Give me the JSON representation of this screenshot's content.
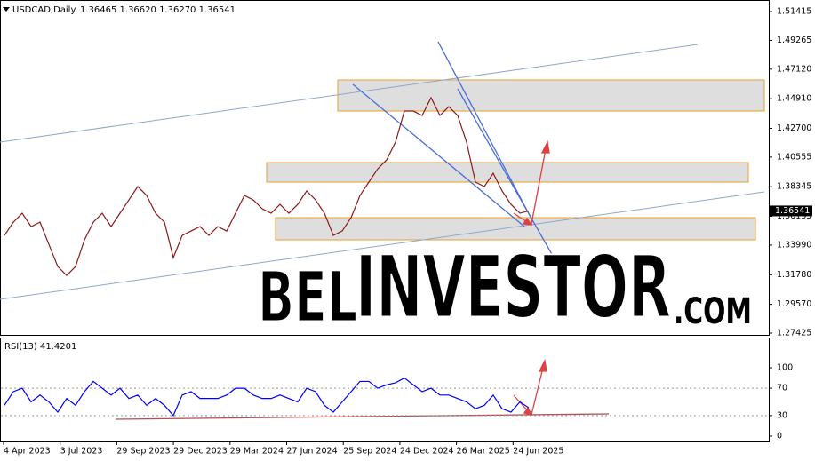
{
  "header": {
    "symbol": "USDCAD,Daily",
    "ohlc": "1.36465 1.36620 1.36270 1.36541"
  },
  "chart_data": [
    {
      "type": "line",
      "color": "#8b1a1a",
      "values": [
        1.3471,
        1.357,
        1.3637,
        1.3537,
        1.357,
        1.3404,
        1.3239,
        1.3172,
        1.3239,
        1.3438,
        1.357,
        1.3637,
        1.3537,
        1.3637,
        1.3736,
        1.3836,
        1.3769,
        1.3637,
        1.357,
        1.3305,
        1.3471,
        1.3504,
        1.3537,
        1.3471,
        1.3537,
        1.3504,
        1.3637,
        1.3769,
        1.3736,
        1.367,
        1.3637,
        1.3703,
        1.3637,
        1.3703,
        1.3803,
        1.3736,
        1.3637,
        1.3471,
        1.3504,
        1.3604,
        1.3769,
        1.3869,
        1.3968,
        1.4035,
        1.4167,
        1.4399,
        1.4399,
        1.4366,
        1.4499,
        1.4366,
        1.4432,
        1.4366,
        1.4167,
        1.3869,
        1.3836,
        1.3935,
        1.3803,
        1.3703,
        1.3637,
        1.36541
      ],
      "ylim": [
        1.27226,
        1.52276
      ],
      "yticks": [
        1.51415,
        1.49265,
        {
          "value": 1.4712,
          "label": "1.47120"
        },
        {
          "value": 1.4491,
          "label": "1.44910"
        },
        {
          "value": 1.427,
          "label": "1.42700"
        },
        1.40555,
        1.38345,
        1.36135,
        {
          "value": 1.3399,
          "label": "1.33990"
        },
        {
          "value": 1.3178,
          "label": "1.31780"
        },
        {
          "value": 1.2957,
          "label": "1.29570"
        },
        1.27425
      ],
      "price_label": 1.36541,
      "x_tick_labels": [
        "4 Apr 2023",
        "3 Jul 2023",
        "29 Sep 2023",
        "29 Dec 2023",
        "29 Mar 2024",
        "27 Jun 2024",
        "25 Sep 2024",
        "24 Dec 2024",
        "26 Mar 2025",
        "24 Jun 2025"
      ]
    },
    {
      "type": "line",
      "title": "RSI(13) 41.4201",
      "color": "#0000ff",
      "values": [
        45,
        65,
        70,
        50,
        60,
        50,
        35,
        55,
        45,
        65,
        80,
        70,
        60,
        70,
        55,
        60,
        45,
        55,
        45,
        30,
        60,
        65,
        55,
        55,
        55,
        60,
        70,
        70,
        60,
        55,
        55,
        60,
        55,
        50,
        70,
        65,
        45,
        35,
        50,
        65,
        80,
        80,
        70,
        75,
        78,
        85,
        75,
        65,
        70,
        60,
        60,
        55,
        50,
        40,
        45,
        60,
        40,
        35,
        50,
        41.42
      ],
      "ylim": [
        -7.8,
        142.9
      ],
      "yticks": [
        100,
        70,
        30,
        0
      ],
      "grid_levels": [
        70,
        30
      ]
    }
  ],
  "watermark": {
    "part1": "BEL",
    "part2": "INVESTOR",
    "part3": ".COM"
  }
}
